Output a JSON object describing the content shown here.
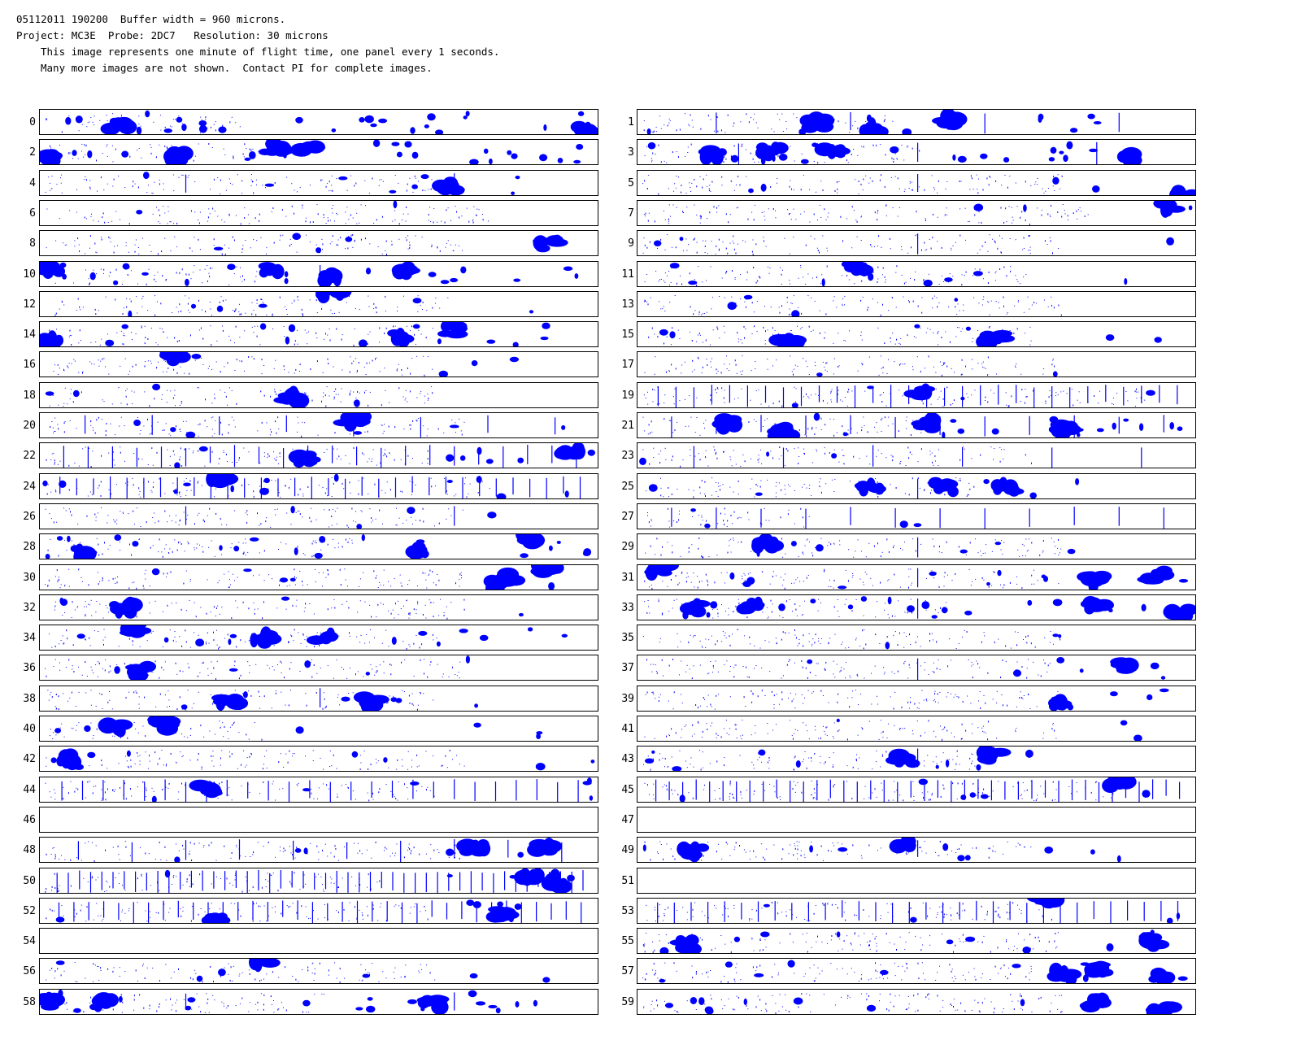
{
  "header": {
    "line1": "05112011 190200  Buffer width = 960 microns.",
    "line2": "Project: MC3E  Probe: 2DC7   Resolution: 30 microns",
    "line3": "This image represents one minute of flight time, one panel every 1 seconds.",
    "line4": "Many more images are not shown.  Contact PI for complete images."
  },
  "colors": {
    "particle": "#0000ff",
    "border": "#000000",
    "background": "#ffffff"
  },
  "panels": [
    {
      "label": "0",
      "big": [
        [
          0.97,
          0.8
        ],
        [
          0.14,
          0.55
        ]
      ],
      "small": 24,
      "density": 0.35,
      "cols": 0
    },
    {
      "label": "1",
      "big": [
        [
          0.32,
          0.5
        ],
        [
          0.56,
          0.35
        ],
        [
          0.42,
          0.7
        ]
      ],
      "small": 10,
      "density": 0.45,
      "cols": 4
    },
    {
      "label": "2",
      "big": [
        [
          0.02,
          0.7
        ],
        [
          0.42,
          0.3
        ],
        [
          0.48,
          0.35
        ],
        [
          0.25,
          0.6
        ]
      ],
      "small": 22,
      "density": 0.4,
      "cols": 0
    },
    {
      "label": "3",
      "big": [
        [
          0.87,
          0.6
        ],
        [
          0.24,
          0.4
        ],
        [
          0.14,
          0.5
        ],
        [
          0.35,
          0.5
        ]
      ],
      "small": 20,
      "density": 0.5,
      "cols": 3
    },
    {
      "label": "4",
      "big": [
        [
          0.73,
          0.6
        ]
      ],
      "small": 8,
      "density": 0.7,
      "cols": 2
    },
    {
      "label": "5",
      "big": [
        [
          0.98,
          0.9
        ]
      ],
      "small": 4,
      "density": 0.75,
      "cols": 1
    },
    {
      "label": "6",
      "big": [],
      "small": 2,
      "density": 0.8,
      "cols": 0
    },
    {
      "label": "7",
      "big": [
        [
          0.95,
          0.2
        ]
      ],
      "small": 3,
      "density": 0.8,
      "cols": 0
    },
    {
      "label": "8",
      "big": [
        [
          0.91,
          0.5
        ]
      ],
      "small": 4,
      "density": 0.75,
      "cols": 0
    },
    {
      "label": "9",
      "big": [],
      "small": 3,
      "density": 0.75,
      "cols": 1
    },
    {
      "label": "10",
      "big": [
        [
          0.52,
          0.6
        ],
        [
          0.02,
          0.2
        ],
        [
          0.41,
          0.3
        ],
        [
          0.65,
          0.3
        ]
      ],
      "small": 18,
      "density": 0.4,
      "cols": 1
    },
    {
      "label": "11",
      "big": [
        [
          0.39,
          0.2
        ]
      ],
      "small": 8,
      "density": 0.7,
      "cols": 0
    },
    {
      "label": "12",
      "big": [
        [
          0.52,
          0.05
        ]
      ],
      "small": 6,
      "density": 0.75,
      "cols": 0
    },
    {
      "label": "13",
      "big": [],
      "small": 4,
      "density": 0.75,
      "cols": 0
    },
    {
      "label": "14",
      "big": [
        [
          0.64,
          0.6
        ],
        [
          0.02,
          0.7
        ],
        [
          0.74,
          0.3
        ]
      ],
      "small": 14,
      "density": 0.7,
      "cols": 0
    },
    {
      "label": "15",
      "big": [
        [
          0.27,
          0.8
        ],
        [
          0.64,
          0.6
        ]
      ],
      "small": 6,
      "density": 0.7,
      "cols": 0
    },
    {
      "label": "16",
      "big": [
        [
          0.24,
          0.2
        ]
      ],
      "small": 4,
      "density": 0.7,
      "cols": 0
    },
    {
      "label": "17",
      "big": [],
      "small": 2,
      "density": 0.75,
      "cols": 0
    },
    {
      "label": "18",
      "big": [
        [
          0.45,
          0.5
        ]
      ],
      "small": 4,
      "density": 0.7,
      "cols": 0
    },
    {
      "label": "19",
      "big": [
        [
          0.5,
          0.4
        ]
      ],
      "small": 4,
      "density": 0.9,
      "cols": 30
    },
    {
      "label": "20",
      "big": [
        [
          0.56,
          0.3
        ]
      ],
      "small": 6,
      "density": 0.75,
      "cols": 8
    },
    {
      "label": "21",
      "big": [
        [
          0.26,
          0.7
        ],
        [
          0.52,
          0.4
        ],
        [
          0.76,
          0.6
        ],
        [
          0.16,
          0.4
        ]
      ],
      "small": 16,
      "density": 0.5,
      "cols": 12
    },
    {
      "label": "22",
      "big": [
        [
          0.95,
          0.3
        ],
        [
          0.48,
          0.6
        ]
      ],
      "small": 10,
      "density": 0.7,
      "cols": 22
    },
    {
      "label": "23",
      "big": [],
      "small": 3,
      "density": 0.7,
      "cols": 6
    },
    {
      "label": "24",
      "big": [
        [
          0.32,
          0.3
        ]
      ],
      "small": 12,
      "density": 0.8,
      "cols": 32
    },
    {
      "label": "25",
      "big": [
        [
          0.42,
          0.5
        ],
        [
          0.55,
          0.5
        ],
        [
          0.66,
          0.5
        ]
      ],
      "small": 6,
      "density": 0.6,
      "cols": 1
    },
    {
      "label": "26",
      "big": [],
      "small": 4,
      "density": 0.75,
      "cols": 2
    },
    {
      "label": "27",
      "big": [],
      "small": 4,
      "density": 0.3,
      "cols": 12
    },
    {
      "label": "28",
      "big": [
        [
          0.68,
          0.6
        ],
        [
          0.87,
          0.2
        ],
        [
          0.08,
          0.7
        ]
      ],
      "small": 18,
      "density": 0.55,
      "cols": 0
    },
    {
      "label": "29",
      "big": [
        [
          0.23,
          0.4
        ]
      ],
      "small": 6,
      "density": 0.75,
      "cols": 1
    },
    {
      "label": "30",
      "big": [
        [
          0.84,
          0.5
        ],
        [
          0.91,
          0.2
        ],
        [
          0.81,
          0.8
        ]
      ],
      "small": 6,
      "density": 0.75,
      "cols": 0
    },
    {
      "label": "31",
      "big": [
        [
          0.04,
          0.2
        ],
        [
          0.82,
          0.6
        ],
        [
          0.93,
          0.4
        ]
      ],
      "small": 10,
      "density": 0.75,
      "cols": 1
    },
    {
      "label": "32",
      "big": [
        [
          0.15,
          0.5
        ]
      ],
      "small": 4,
      "density": 0.75,
      "cols": 0
    },
    {
      "label": "33",
      "big": [
        [
          0.2,
          0.4
        ],
        [
          0.82,
          0.4
        ],
        [
          0.1,
          0.5
        ],
        [
          0.97,
          0.7
        ]
      ],
      "small": 18,
      "density": 0.55,
      "cols": 1
    },
    {
      "label": "34",
      "big": [
        [
          0.17,
          0.1
        ],
        [
          0.4,
          0.5
        ],
        [
          0.51,
          0.5
        ]
      ],
      "small": 14,
      "density": 0.7,
      "cols": 0
    },
    {
      "label": "35",
      "big": [],
      "small": 3,
      "density": 0.75,
      "cols": 0
    },
    {
      "label": "36",
      "big": [
        [
          0.18,
          0.6
        ]
      ],
      "small": 6,
      "density": 0.75,
      "cols": 0
    },
    {
      "label": "37",
      "big": [
        [
          0.87,
          0.4
        ]
      ],
      "small": 6,
      "density": 0.75,
      "cols": 1
    },
    {
      "label": "38",
      "big": [
        [
          0.59,
          0.6
        ],
        [
          0.34,
          0.6
        ]
      ],
      "small": 6,
      "density": 0.7,
      "cols": 1
    },
    {
      "label": "39",
      "big": [
        [
          0.76,
          0.7
        ]
      ],
      "small": 4,
      "density": 0.75,
      "cols": 0
    },
    {
      "label": "40",
      "big": [
        [
          0.13,
          0.5
        ],
        [
          0.22,
          0.3
        ]
      ],
      "small": 6,
      "density": 0.4,
      "cols": 0
    },
    {
      "label": "41",
      "big": [],
      "small": 3,
      "density": 0.75,
      "cols": 0
    },
    {
      "label": "42",
      "big": [
        [
          0.05,
          0.5
        ]
      ],
      "small": 8,
      "density": 0.75,
      "cols": 0
    },
    {
      "label": "43",
      "big": [
        [
          0.64,
          0.4
        ],
        [
          0.48,
          0.5
        ]
      ],
      "small": 10,
      "density": 0.6,
      "cols": 1
    },
    {
      "label": "44",
      "big": [
        [
          0.3,
          0.5
        ]
      ],
      "small": 6,
      "density": 0.7,
      "cols": 26
    },
    {
      "label": "45",
      "big": [
        [
          0.86,
          0.2
        ]
      ],
      "small": 6,
      "density": 0.85,
      "cols": 40
    },
    {
      "label": "46",
      "big": [],
      "small": 0,
      "density": 0,
      "cols": 0
    },
    {
      "label": "47",
      "big": [],
      "small": 0,
      "density": 0,
      "cols": 0
    },
    {
      "label": "48",
      "big": [
        [
          0.9,
          0.4
        ],
        [
          0.78,
          0.4
        ]
      ],
      "small": 6,
      "density": 0.75,
      "cols": 10
    },
    {
      "label": "49",
      "big": [
        [
          0.47,
          0.2
        ],
        [
          0.1,
          0.5
        ]
      ],
      "small": 10,
      "density": 0.7,
      "cols": 1
    },
    {
      "label": "50",
      "big": [
        [
          0.92,
          0.5
        ],
        [
          0.88,
          0.4
        ]
      ],
      "small": 4,
      "density": 0.6,
      "cols": 48
    },
    {
      "label": "51",
      "big": [],
      "small": 0,
      "density": 0,
      "cols": 0
    },
    {
      "label": "52",
      "big": [
        [
          0.83,
          0.6
        ],
        [
          0.31,
          0.7
        ]
      ],
      "small": 6,
      "density": 0.7,
      "cols": 36
    },
    {
      "label": "53",
      "big": [
        [
          0.73,
          0.1
        ]
      ],
      "small": 4,
      "density": 0.75,
      "cols": 32
    },
    {
      "label": "54",
      "big": [],
      "small": 0,
      "density": 0,
      "cols": 0
    },
    {
      "label": "55",
      "big": [
        [
          0.92,
          0.5
        ],
        [
          0.09,
          0.6
        ]
      ],
      "small": 10,
      "density": 0.75,
      "cols": 0
    },
    {
      "label": "56",
      "big": [
        [
          0.4,
          0.1
        ]
      ],
      "small": 6,
      "density": 0.7,
      "cols": 0
    },
    {
      "label": "57",
      "big": [
        [
          0.76,
          0.6
        ],
        [
          0.83,
          0.4
        ],
        [
          0.94,
          0.6
        ]
      ],
      "small": 10,
      "density": 0.7,
      "cols": 0
    },
    {
      "label": "58",
      "big": [
        [
          0.7,
          0.5
        ],
        [
          0.11,
          0.5
        ],
        [
          0.02,
          0.5
        ]
      ],
      "small": 18,
      "density": 0.5,
      "cols": 2
    },
    {
      "label": "59",
      "big": [
        [
          0.82,
          0.5
        ],
        [
          0.94,
          0.8
        ]
      ],
      "small": 10,
      "density": 0.75,
      "cols": 0
    }
  ]
}
